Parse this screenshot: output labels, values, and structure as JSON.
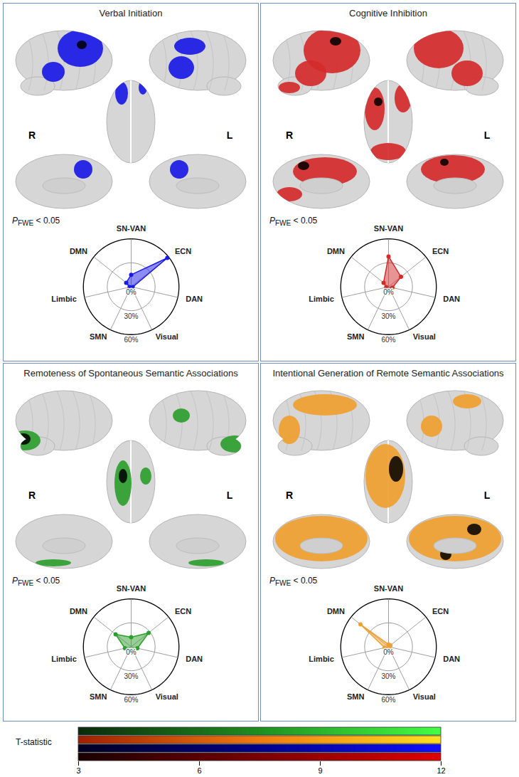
{
  "chart_data": [
    {
      "type": "radar",
      "title": "Verbal Initiation",
      "categories": [
        "SN-VAN",
        "ECN",
        "DAN",
        "Visual",
        "SMN",
        "Limbic",
        "DMN"
      ],
      "values": [
        15,
        58,
        2,
        2,
        2,
        2,
        8
      ],
      "color": "#1a1ae6",
      "ylim": [
        0,
        60
      ],
      "yticks": [
        {
          "value": 0,
          "label": "0%"
        },
        {
          "value": 30,
          "label": "30%"
        },
        {
          "value": 60,
          "label": "60%"
        }
      ],
      "annotation": {
        "text": "P",
        "subscript": "FWE",
        "suffix": " < 0.05"
      },
      "hemisphere_labels": [
        "R",
        "L"
      ]
    },
    {
      "type": "radar",
      "title": "Cognitive Inhibition",
      "categories": [
        "SN-VAN",
        "ECN",
        "DAN",
        "Visual",
        "SMN",
        "Limbic",
        "DMN"
      ],
      "values": [
        38,
        20,
        5,
        4,
        3,
        3,
        8
      ],
      "color": "#d42a2a",
      "ylim": [
        0,
        60
      ],
      "yticks": [
        {
          "value": 0,
          "label": "0%"
        },
        {
          "value": 30,
          "label": "30%"
        },
        {
          "value": 60,
          "label": "60%"
        }
      ],
      "annotation": {
        "text": "P",
        "subscript": "FWE",
        "suffix": " < 0.05"
      },
      "hemisphere_labels": [
        "R",
        "L"
      ]
    },
    {
      "type": "radar",
      "title": "Remoteness of Spontaneous Semantic Associations",
      "categories": [
        "SN-VAN",
        "ECN",
        "DAN",
        "Visual",
        "SMN",
        "Limbic",
        "DMN"
      ],
      "values": [
        12,
        28,
        8,
        5,
        5,
        8,
        25
      ],
      "color": "#2e9e2e",
      "ylim": [
        0,
        60
      ],
      "yticks": [
        {
          "value": 0,
          "label": "0%"
        },
        {
          "value": 30,
          "label": "30%"
        },
        {
          "value": 60,
          "label": "60%"
        }
      ],
      "annotation": {
        "text": "P",
        "subscript": "FWE",
        "suffix": " < 0.05"
      },
      "hemisphere_labels": [
        "R",
        "L"
      ]
    },
    {
      "type": "radar",
      "title": "Intentional Generation of Remote Semantic Associations",
      "categories": [
        "SN-VAN",
        "ECN",
        "DAN",
        "Visual",
        "SMN",
        "Limbic",
        "DMN"
      ],
      "values": [
        3,
        3,
        2,
        2,
        2,
        5,
        45
      ],
      "color": "#f0a030",
      "ylim": [
        0,
        60
      ],
      "yticks": [
        {
          "value": 0,
          "label": "0%"
        },
        {
          "value": 30,
          "label": "30%"
        },
        {
          "value": 60,
          "label": "60%"
        }
      ],
      "annotation": {
        "text": "P",
        "subscript": "FWE",
        "suffix": " < 0.05"
      },
      "hemisphere_labels": [
        "R",
        "L"
      ]
    },
    {
      "type": "colorbar",
      "label": "T-statistic",
      "xlim": [
        3,
        12
      ],
      "xticks": [
        3,
        6,
        9,
        12
      ],
      "colors": [
        [
          "#0b2a0b",
          "#1f8f1f",
          "#44ff44"
        ],
        [
          "#a02000",
          "#f07a10",
          "#ffe020"
        ],
        [
          "#000022",
          "#00008a",
          "#1010ff"
        ],
        [
          "#1a0000",
          "#7a0000",
          "#e00000"
        ]
      ]
    }
  ]
}
